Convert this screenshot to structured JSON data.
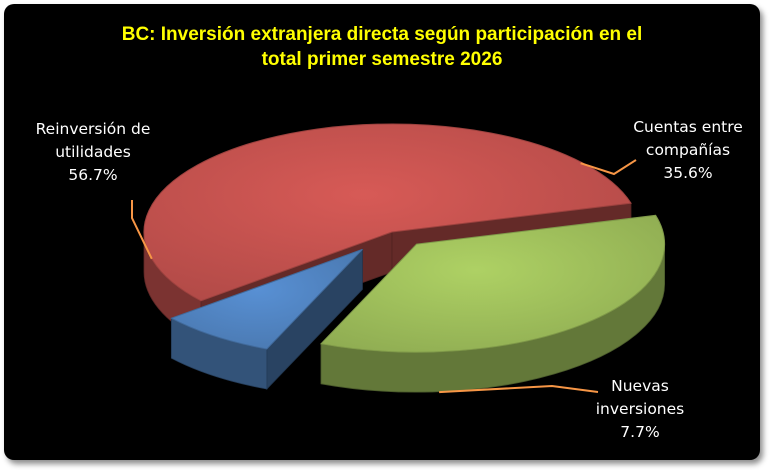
{
  "chart_data": {
    "type": "pie",
    "title_line1": "BC: Inversión extranjera directa según participación en el",
    "title_line2": "total primer semestre 2026",
    "slices": [
      {
        "label_line1": "Reinversión de",
        "label_line2": "utilidades",
        "value": 56.7,
        "value_label": "56.7%",
        "color": "#c0504d"
      },
      {
        "label_line1": "Cuentas entre",
        "label_line2": "compañías",
        "value": 35.6,
        "value_label": "35.6%",
        "color": "#9bbb59"
      },
      {
        "label_line1": "Nuevas",
        "label_line2": "inversiones",
        "value": 7.7,
        "value_label": "7.7%",
        "color": "#4f81bd"
      }
    ],
    "leader_color": "#f79646",
    "background": "#000000",
    "title_color": "#ffff00"
  }
}
